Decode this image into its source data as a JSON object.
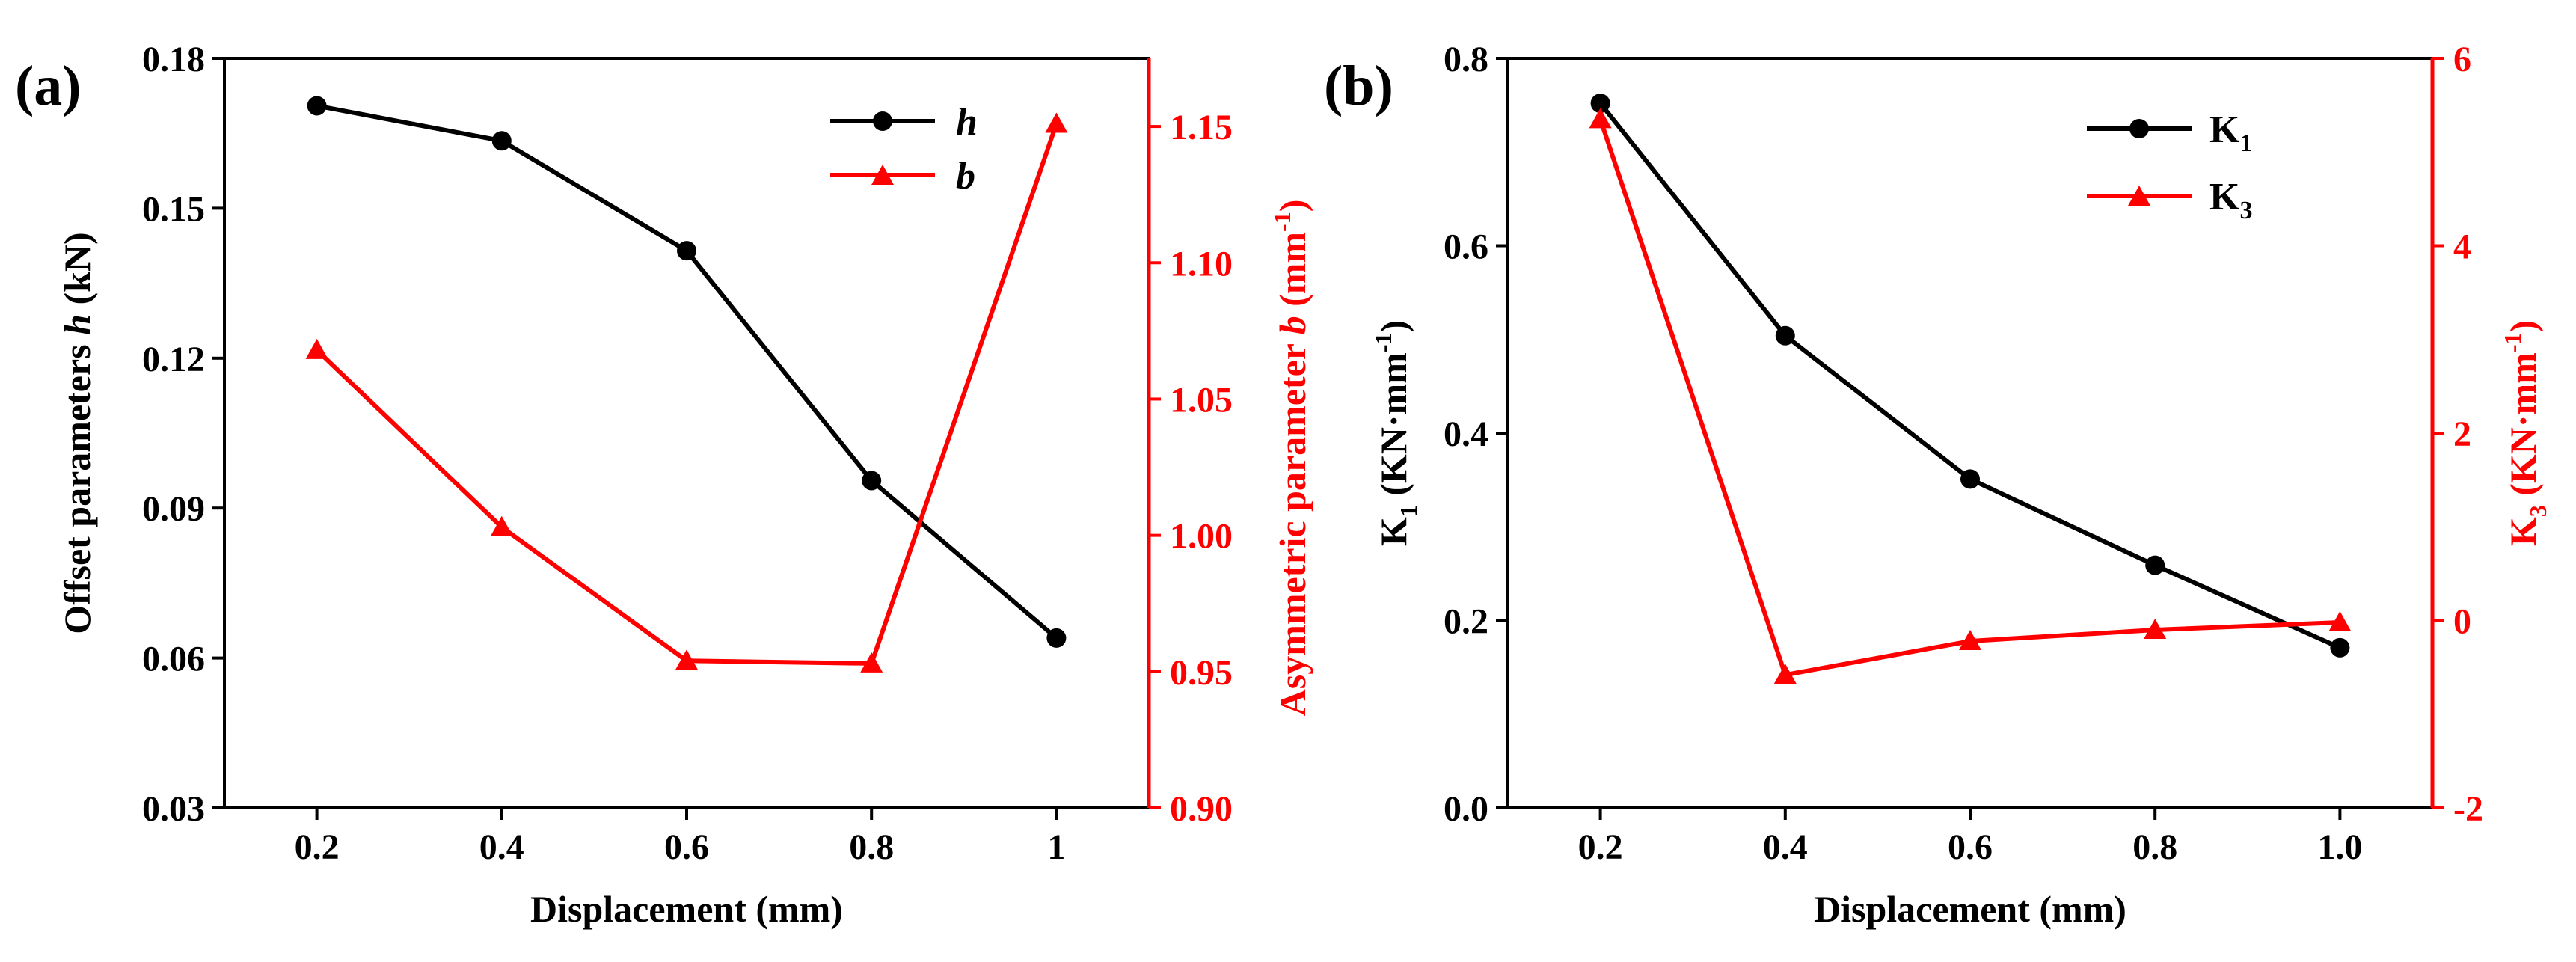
{
  "chart_data": [
    {
      "type": "line",
      "panel_label": "(a)",
      "xlabel": "Displacement (mm)",
      "x": [
        0.2,
        0.4,
        0.6,
        0.8,
        1.0
      ],
      "xticks": [
        "0.2",
        "0.4",
        "0.6",
        "0.8",
        "1"
      ],
      "xlim": [
        0.1,
        1.1
      ],
      "left_axis": {
        "label_parts": [
          "Offset parameters ",
          "h",
          " (kN)"
        ],
        "ylim": [
          0.03,
          0.18
        ],
        "ticks": [
          "0.03",
          "0.06",
          "0.09",
          "0.12",
          "0.15",
          "0.18"
        ],
        "color": "#000000"
      },
      "right_axis": {
        "label_parts": [
          "Asymmetric parameter ",
          "b",
          " (mm",
          "-1",
          ")"
        ],
        "ylim": [
          0.9,
          1.175
        ],
        "ticks": [
          "0.90",
          "0.95",
          "1.00",
          "1.05",
          "1.10",
          "1.15"
        ],
        "color": "#ff0000"
      },
      "series": [
        {
          "name": "h",
          "axis": "left",
          "marker": "circle",
          "color": "#000000",
          "values": [
            0.1705,
            0.1635,
            0.1415,
            0.0955,
            0.064
          ]
        },
        {
          "name": "b",
          "axis": "right",
          "marker": "triangle",
          "color": "#ff0000",
          "values": [
            1.068,
            1.003,
            0.954,
            0.953,
            1.151
          ]
        }
      ]
    },
    {
      "type": "line",
      "panel_label": "(b)",
      "xlabel": "Displacement (mm)",
      "x": [
        0.2,
        0.4,
        0.6,
        0.8,
        1.0
      ],
      "xticks": [
        "0.2",
        "0.4",
        "0.6",
        "0.8",
        "1.0"
      ],
      "xlim": [
        0.1,
        1.1
      ],
      "left_axis": {
        "label_parts": [
          "K",
          "1",
          " (KN·mm",
          "-1",
          ")"
        ],
        "ylim": [
          0.0,
          0.8
        ],
        "ticks": [
          "0.0",
          "0.2",
          "0.4",
          "0.6",
          "0.8"
        ],
        "color": "#000000"
      },
      "right_axis": {
        "label_parts": [
          "K",
          "3",
          " (KN·mm",
          "-1",
          ")"
        ],
        "ylim": [
          -2,
          6
        ],
        "ticks": [
          "-2",
          "0",
          "2",
          "4",
          "6"
        ],
        "color": "#ff0000"
      },
      "series": [
        {
          "name": "K1",
          "name_parts": [
            "K",
            "1"
          ],
          "axis": "left",
          "marker": "circle",
          "color": "#000000",
          "values": [
            0.752,
            0.504,
            0.351,
            0.259,
            0.171
          ]
        },
        {
          "name": "K3",
          "name_parts": [
            "K",
            "3"
          ],
          "axis": "right",
          "marker": "triangle",
          "color": "#ff0000",
          "values": [
            5.35,
            -0.58,
            -0.22,
            -0.1,
            -0.02
          ]
        }
      ]
    }
  ]
}
